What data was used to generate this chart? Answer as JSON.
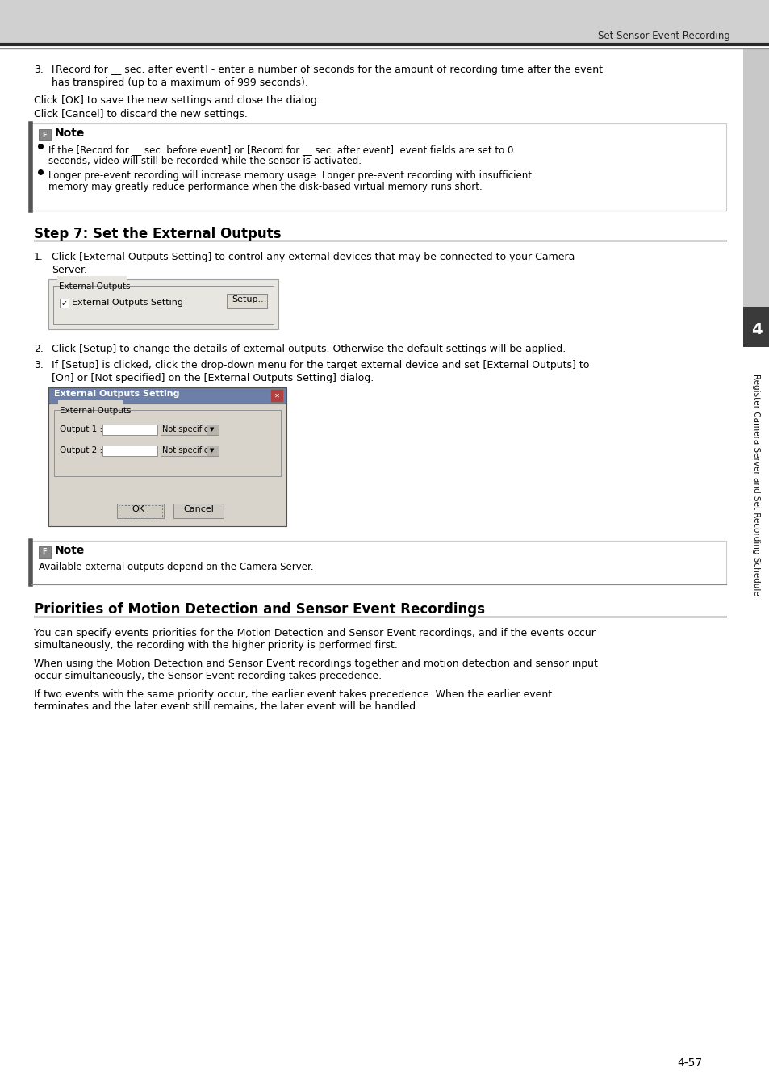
{
  "page_bg": "#ffffff",
  "header_bg": "#d0d0d0",
  "header_text": "Set Sensor Event Recording",
  "sidebar_dark": "#3a3a3a",
  "sidebar_number": "4",
  "sidebar_text_color": "#000000",
  "sidebar_text": "Register Camera Server and Set Recording Schedule",
  "page_number": "4-57",
  "note_left_bar": "#555555",
  "note_bg": "#ffffff",
  "note_border": "#cccccc",
  "dialog_bg": "#d4d0c8",
  "dialog_border": "#808080",
  "dlg2_title_bg": "#000080"
}
